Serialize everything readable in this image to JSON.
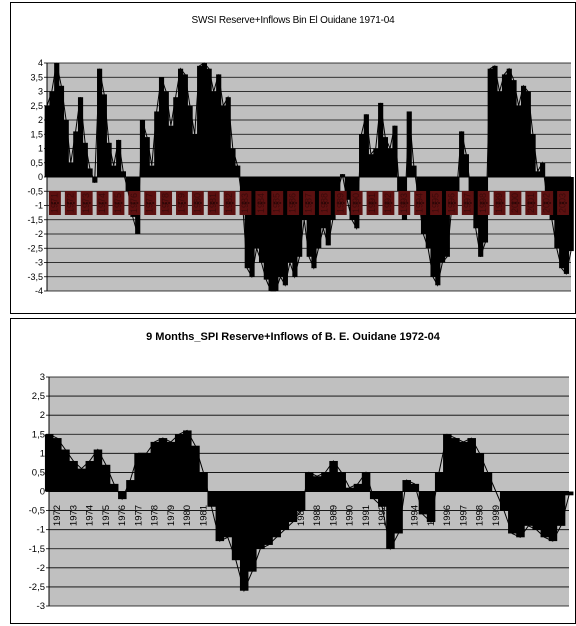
{
  "charts": [
    {
      "title": "SWSI Reserve+Inflows  Bin El Ouidane  1971-04"
    },
    {
      "title": "9 Months_SPI  Reserve+Inflows of B. E. Ouidane 1972-04"
    }
  ],
  "chart_data": [
    {
      "type": "area",
      "title": "SWSI Reserve+Inflows  Bin El Ouidane  1971-04",
      "xlabel": "",
      "ylabel": "",
      "ylim": [
        -4,
        4
      ],
      "yticks": [
        "4",
        "3,5",
        "3",
        "2,5",
        "2",
        "1,5",
        "1",
        "0,5",
        "0",
        "-0,5",
        "-1",
        "-1,5",
        "-2",
        "-2,5",
        "-3",
        "-3,5",
        "-4"
      ],
      "xticks": [
        "1971",
        "1972",
        "1973",
        "1974",
        "1975",
        "1976",
        "1977",
        "1978",
        "1979",
        "1980",
        "1981",
        "1982",
        "1983",
        "1984",
        "1985",
        "1986",
        "1987",
        "1988",
        "1989",
        "1990",
        "1991",
        "1992",
        "1993",
        "1994",
        "1995",
        "1996",
        "1997",
        "1998",
        "1999",
        "2000",
        "2001",
        "2002",
        "2003"
      ],
      "grid": true,
      "plot_background": "#c0c0c0",
      "fill_color": "#000000",
      "label_box_color": "#5c1010",
      "x": [
        1971.0,
        1971.3,
        1971.6,
        1971.9,
        1972.2,
        1972.5,
        1972.8,
        1973.1,
        1973.4,
        1973.7,
        1974.0,
        1974.3,
        1974.6,
        1974.9,
        1975.2,
        1975.5,
        1975.8,
        1976.1,
        1976.4,
        1976.7,
        1977.0,
        1977.3,
        1977.6,
        1977.9,
        1978.2,
        1978.5,
        1978.8,
        1979.1,
        1979.4,
        1979.7,
        1980.0,
        1980.3,
        1980.6,
        1980.9,
        1981.2,
        1981.5,
        1981.8,
        1982.1,
        1982.4,
        1982.7,
        1983.0,
        1983.3,
        1983.6,
        1983.9,
        1984.2,
        1984.5,
        1984.8,
        1985.1,
        1985.4,
        1985.7,
        1986.0,
        1986.3,
        1986.6,
        1986.9,
        1987.2,
        1987.5,
        1987.8,
        1988.1,
        1988.4,
        1988.7,
        1989.0,
        1989.3,
        1989.6,
        1989.9,
        1990.2,
        1990.5,
        1990.8,
        1991.1,
        1991.4,
        1991.7,
        1992.0,
        1992.3,
        1992.6,
        1992.9,
        1993.2,
        1993.5,
        1993.8,
        1994.1,
        1994.4,
        1994.7,
        1995.0,
        1995.3,
        1995.6,
        1995.9,
        1996.2,
        1996.5,
        1996.8,
        1997.1,
        1997.4,
        1997.7,
        1998.0,
        1998.3,
        1998.6,
        1998.9,
        1999.2,
        1999.5,
        1999.8,
        2000.1,
        2000.4,
        2000.7,
        2001.0,
        2001.3,
        2001.6,
        2001.9,
        2002.2,
        2002.5,
        2002.8,
        2003.1,
        2003.4,
        2003.7,
        2004.0
      ],
      "values": [
        2.5,
        3.0,
        4.0,
        3.2,
        2.0,
        0.5,
        1.6,
        2.8,
        1.2,
        0.3,
        -0.2,
        3.8,
        2.9,
        1.2,
        0.4,
        1.3,
        0.2,
        -0.5,
        -1.4,
        -2.0,
        2.0,
        1.4,
        0.4,
        2.3,
        3.5,
        3.0,
        1.8,
        2.8,
        3.8,
        3.6,
        2.5,
        1.5,
        3.9,
        4.0,
        3.8,
        3.0,
        3.6,
        2.5,
        2.8,
        1.0,
        0.4,
        -0.8,
        -3.2,
        -3.5,
        -2.5,
        -3.0,
        -3.6,
        -4.0,
        -4.0,
        -3.5,
        -3.8,
        -3.0,
        -3.5,
        -2.8,
        -1.5,
        -2.8,
        -3.2,
        -2.5,
        -1.8,
        -2.4,
        -1.5,
        -0.5,
        0.1,
        -0.8,
        -1.5,
        -1.8,
        1.5,
        2.2,
        0.8,
        1.0,
        2.6,
        1.4,
        1.0,
        1.8,
        -0.5,
        -1.5,
        2.3,
        0.4,
        -0.8,
        -2.0,
        -2.5,
        -3.5,
        -3.8,
        -3.0,
        -2.8,
        -1.0,
        -0.5,
        1.6,
        0.8,
        -0.5,
        -1.8,
        -2.8,
        -2.3,
        3.8,
        3.9,
        3.0,
        3.6,
        3.8,
        3.4,
        2.5,
        3.2,
        3.0,
        1.5,
        0.2,
        0.5,
        -0.8,
        -1.5,
        -2.5,
        -3.2,
        -3.4,
        -2.6
      ]
    },
    {
      "type": "area",
      "title": "9 Months_SPI  Reserve+Inflows of B. E. Ouidane 1972-04",
      "xlabel": "",
      "ylabel": "",
      "ylim": [
        -3,
        3
      ],
      "yticks": [
        "3",
        "2,5",
        "2",
        "1,5",
        "1",
        "0,5",
        "0",
        "-0,5",
        "-1",
        "-1,5",
        "-2",
        "-2,5",
        "-3"
      ],
      "xticks": [
        "1972",
        "1973",
        "1974",
        "1975",
        "1976",
        "1977",
        "1978",
        "1979",
        "1980",
        "1981",
        "1982",
        "1983",
        "1984",
        "1985",
        "1986",
        "1987",
        "1988",
        "1989",
        "1990",
        "1991",
        "1992",
        "1993",
        "1994",
        "1995",
        "1996",
        "1997",
        "1998",
        "1999",
        "2000",
        "2001",
        "2002",
        "2003"
      ],
      "grid": true,
      "plot_background": "#c0c0c0",
      "fill_color": "#000000",
      "x": [
        1972.0,
        1972.5,
        1973.0,
        1973.5,
        1974.0,
        1974.5,
        1975.0,
        1975.5,
        1976.0,
        1976.5,
        1977.0,
        1977.5,
        1978.0,
        1978.5,
        1979.0,
        1979.5,
        1980.0,
        1980.5,
        1981.0,
        1981.5,
        1982.0,
        1982.5,
        1983.0,
        1983.5,
        1984.0,
        1984.5,
        1985.0,
        1985.5,
        1986.0,
        1986.5,
        1987.0,
        1987.5,
        1988.0,
        1988.5,
        1989.0,
        1989.5,
        1990.0,
        1990.5,
        1991.0,
        1991.5,
        1992.0,
        1992.5,
        1993.0,
        1993.5,
        1994.0,
        1994.5,
        1995.0,
        1995.5,
        1996.0,
        1996.5,
        1997.0,
        1997.5,
        1998.0,
        1998.5,
        1999.0,
        1999.5,
        2000.0,
        2000.5,
        2001.0,
        2001.5,
        2002.0,
        2002.5,
        2003.0,
        2003.5,
        2004.0
      ],
      "values": [
        1.5,
        1.4,
        1.1,
        0.8,
        0.6,
        0.8,
        1.1,
        0.7,
        0.2,
        -0.2,
        0.3,
        1.0,
        1.0,
        1.3,
        1.4,
        1.3,
        1.5,
        1.6,
        1.2,
        0.5,
        -0.4,
        -1.3,
        -1.2,
        -1.8,
        -2.6,
        -2.1,
        -1.5,
        -1.4,
        -1.2,
        -1.0,
        -0.8,
        -0.5,
        0.5,
        0.4,
        0.5,
        0.8,
        0.5,
        0.1,
        0.2,
        0.5,
        -0.2,
        -0.4,
        -1.5,
        -1.1,
        0.3,
        0.2,
        -0.6,
        -0.8,
        0.5,
        1.5,
        1.4,
        1.3,
        1.4,
        1.0,
        0.5,
        0.0,
        -0.5,
        -1.1,
        -1.2,
        -0.9,
        -1.0,
        -1.2,
        -1.3,
        -0.9,
        -0.1
      ]
    }
  ]
}
